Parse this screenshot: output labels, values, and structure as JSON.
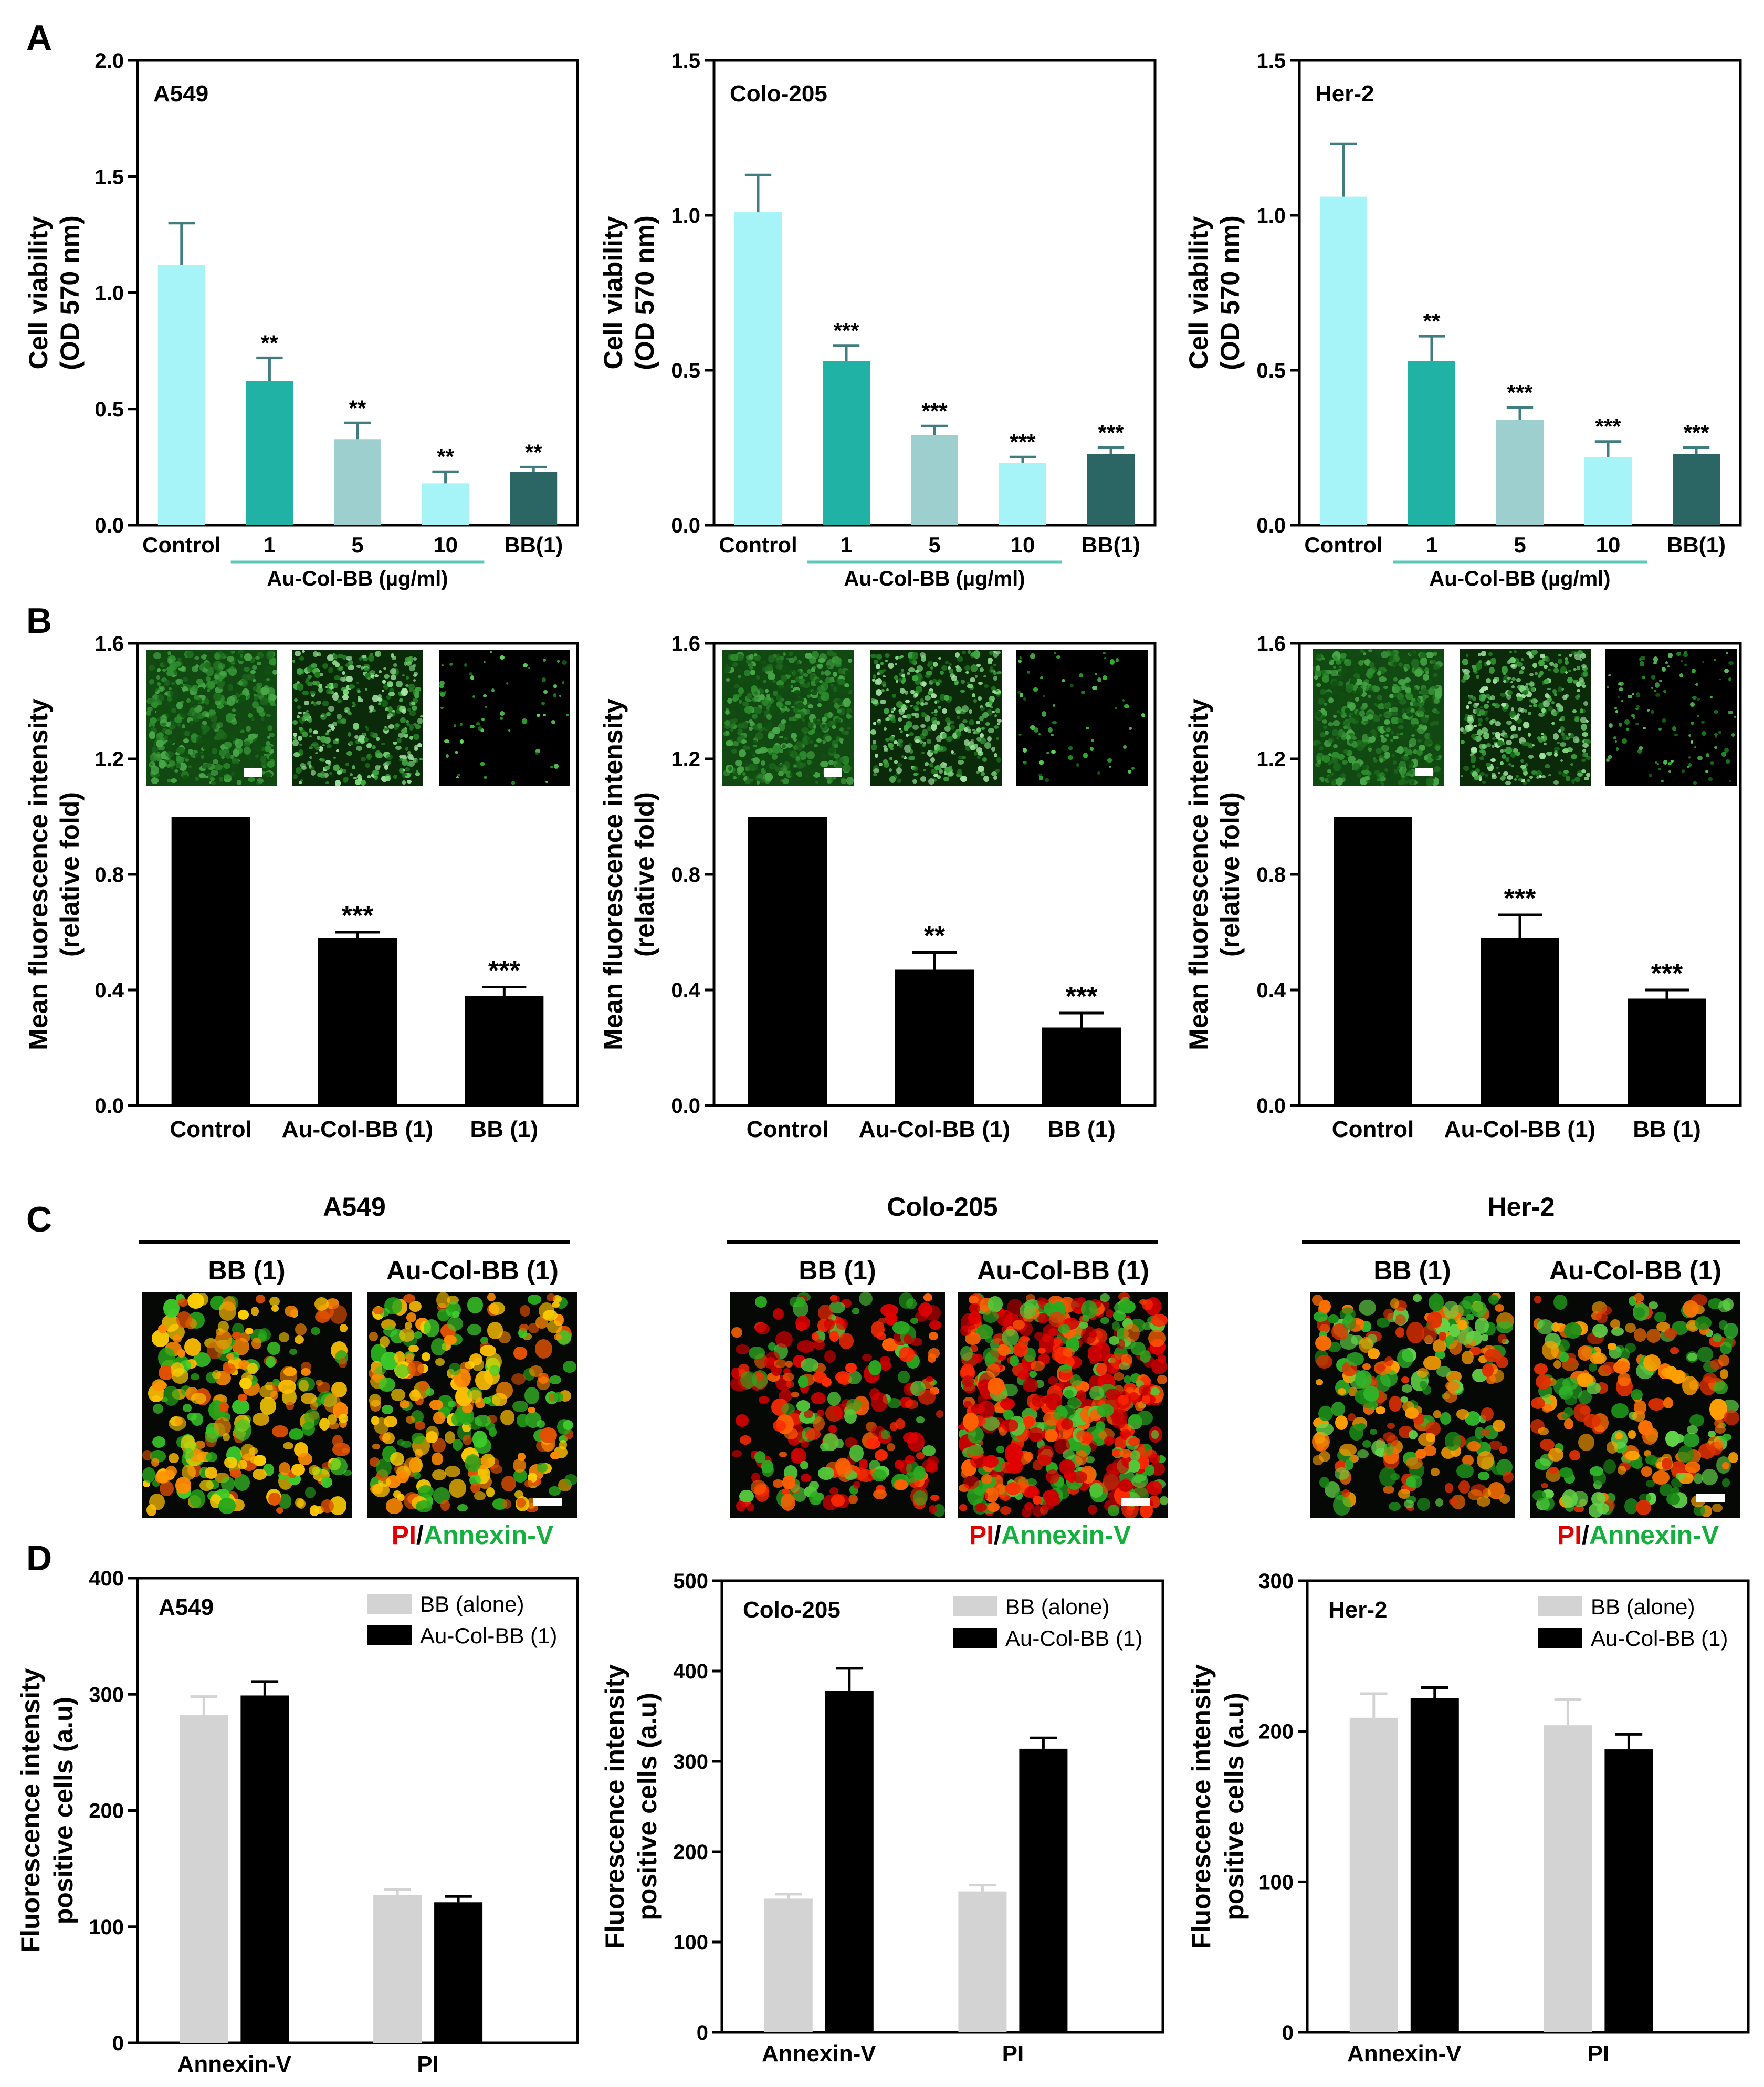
{
  "panel_letters": [
    "A",
    "B",
    "C",
    "D"
  ],
  "colors": {
    "control": "#a6f3f8",
    "au1": "#20b3a5",
    "au5": "#9dcfcf",
    "au10": "#a6f3f8",
    "bb": "#2b6564",
    "black": "#000000",
    "grey": "#d3d3d3",
    "pi_red": "#e00000",
    "annexin_green": "#13b13c"
  },
  "panelA": {
    "ylabel_1": "Cell viability",
    "ylabel_2": "(OD 570 nm)",
    "group_label": "Au-Col-BB (µg/ml)",
    "categories": [
      "Control",
      "1",
      "5",
      "10",
      "BB(1)"
    ]
  },
  "panelB": {
    "ylabel_1": "Mean fluorescence intensity",
    "ylabel_2": "(relative fold)",
    "categories": [
      "Control",
      "Au-Col-BB (1)",
      "BB (1)"
    ]
  },
  "panelC": {
    "cells": [
      "A549",
      "Colo-205",
      "Her-2"
    ],
    "treatments": [
      "BB (1)",
      "Au-Col-BB (1)"
    ],
    "stain_pi": "PI",
    "stain_sep": "/",
    "stain_annexin": "Annexin-V"
  },
  "panelD": {
    "ylabel_1": "Fluorescence intensity",
    "ylabel_2": "positive cells (a.u)",
    "categories": [
      "Annexin-V",
      "PI"
    ],
    "legend": [
      "BB (alone)",
      "Au-Col-BB (1)"
    ]
  },
  "chart_data": [
    {
      "id": "A1",
      "type": "bar",
      "title": "A549",
      "categories": [
        "Control",
        "1",
        "5",
        "10",
        "BB(1)"
      ],
      "values": [
        1.12,
        0.62,
        0.37,
        0.18,
        0.23
      ],
      "errors": [
        0.18,
        0.1,
        0.07,
        0.05,
        0.02
      ],
      "sig": [
        "",
        "**",
        "**",
        "**",
        "**"
      ],
      "ylim": [
        0,
        2.0
      ],
      "yticks": [
        0.0,
        0.5,
        1.0,
        1.5,
        2.0
      ]
    },
    {
      "id": "A2",
      "type": "bar",
      "title": "Colo-205",
      "categories": [
        "Control",
        "1",
        "5",
        "10",
        "BB(1)"
      ],
      "values": [
        1.01,
        0.53,
        0.29,
        0.2,
        0.23
      ],
      "errors": [
        0.12,
        0.05,
        0.03,
        0.02,
        0.02
      ],
      "sig": [
        "",
        "***",
        "***",
        "***",
        "***"
      ],
      "ylim": [
        0,
        1.5
      ],
      "yticks": [
        0.0,
        0.5,
        1.0,
        1.5
      ]
    },
    {
      "id": "A3",
      "type": "bar",
      "title": "Her-2",
      "categories": [
        "Control",
        "1",
        "5",
        "10",
        "BB(1)"
      ],
      "values": [
        1.06,
        0.53,
        0.34,
        0.22,
        0.23
      ],
      "errors": [
        0.17,
        0.08,
        0.04,
        0.05,
        0.02
      ],
      "sig": [
        "",
        "**",
        "***",
        "***",
        "***"
      ],
      "ylim": [
        0,
        1.5
      ],
      "yticks": [
        0.0,
        0.5,
        1.0,
        1.5
      ]
    },
    {
      "id": "B1",
      "type": "bar",
      "title": "",
      "categories": [
        "Control",
        "Au-Col-BB (1)",
        "BB (1)"
      ],
      "values": [
        1.0,
        0.58,
        0.38
      ],
      "errors": [
        0,
        0.02,
        0.03
      ],
      "sig": [
        "",
        "***",
        "***"
      ],
      "ylim": [
        0,
        1.6
      ],
      "yticks": [
        0.0,
        0.4,
        0.8,
        1.2,
        1.6
      ]
    },
    {
      "id": "B2",
      "type": "bar",
      "title": "",
      "categories": [
        "Control",
        "Au-Col-BB (1)",
        "BB (1)"
      ],
      "values": [
        1.0,
        0.47,
        0.27
      ],
      "errors": [
        0,
        0.06,
        0.05
      ],
      "sig": [
        "",
        "**",
        "***"
      ],
      "ylim": [
        0,
        1.6
      ],
      "yticks": [
        0.0,
        0.4,
        0.8,
        1.2,
        1.6
      ]
    },
    {
      "id": "B3",
      "type": "bar",
      "title": "",
      "categories": [
        "Control",
        "Au-Col-BB (1)",
        "BB (1)"
      ],
      "values": [
        1.0,
        0.58,
        0.37
      ],
      "errors": [
        0,
        0.08,
        0.03
      ],
      "sig": [
        "",
        "***",
        "***"
      ],
      "ylim": [
        0,
        1.6
      ],
      "yticks": [
        0.0,
        0.4,
        0.8,
        1.2,
        1.6
      ]
    },
    {
      "id": "D1",
      "type": "bar",
      "title": "A549",
      "categories": [
        "Annexin-V",
        "PI"
      ],
      "series": [
        {
          "name": "BB (alone)",
          "values": [
            282,
            127
          ],
          "errors": [
            16,
            5
          ]
        },
        {
          "name": "Au-Col-BB (1)",
          "values": [
            299,
            121
          ],
          "errors": [
            12,
            5
          ]
        }
      ],
      "ylim": [
        0,
        400
      ],
      "yticks": [
        0,
        100,
        200,
        300,
        400
      ],
      "legend": "top-right"
    },
    {
      "id": "D2",
      "type": "bar",
      "title": "Colo-205",
      "categories": [
        "Annexin-V",
        "PI"
      ],
      "series": [
        {
          "name": "BB (alone)",
          "values": [
            148,
            156
          ],
          "errors": [
            5,
            7
          ]
        },
        {
          "name": "Au-Col-BB (1)",
          "values": [
            378,
            314
          ],
          "errors": [
            25,
            12
          ]
        }
      ],
      "ylim": [
        0,
        500
      ],
      "yticks": [
        0,
        100,
        200,
        300,
        400,
        500
      ],
      "legend": "top-right"
    },
    {
      "id": "D3",
      "type": "bar",
      "title": "Her-2",
      "categories": [
        "Annexin-V",
        "PI"
      ],
      "series": [
        {
          "name": "BB (alone)",
          "values": [
            209,
            204
          ],
          "errors": [
            16,
            17
          ]
        },
        {
          "name": "Au-Col-BB (1)",
          "values": [
            222,
            188
          ],
          "errors": [
            7,
            10
          ]
        }
      ],
      "ylim": [
        0,
        300
      ],
      "yticks": [
        0,
        100,
        200,
        300
      ],
      "legend": "top-right"
    }
  ]
}
